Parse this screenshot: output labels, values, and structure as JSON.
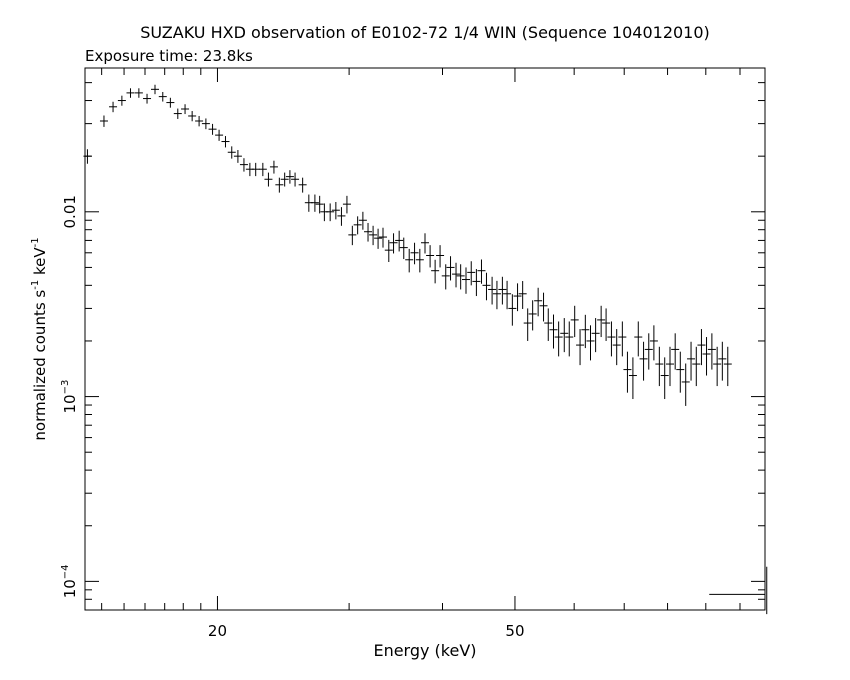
{
  "chart_data": {
    "type": "scatter",
    "title": "SUZAKU HXD observation of E0102-72 1/4 WIN (Sequence 104012010)",
    "subtitle": "Exposure time: 23.8ks",
    "xlabel": "Energy (keV)",
    "ylabel_main": "normalized counts s",
    "ylabel_mid": " keV",
    "ylabel_exp": "-1",
    "x_scale": "log",
    "y_scale": "log",
    "xlim": [
      13.3,
      108
    ],
    "ylim": [
      7e-05,
      0.06
    ],
    "x_ticks": [
      {
        "value": 20,
        "label": "20"
      },
      {
        "value": 50,
        "label": "50"
      }
    ],
    "y_ticks": [
      {
        "value": 0.01,
        "label": "0.01",
        "base": "",
        "exp": ""
      },
      {
        "value": 0.001,
        "label": "",
        "base": "10",
        "exp": "−3"
      },
      {
        "value": 0.0001,
        "label": "",
        "base": "10",
        "exp": "−4"
      }
    ],
    "grid": false,
    "legend": "none",
    "color": "#000000",
    "points": [
      {
        "x": 13.4,
        "y": 0.02,
        "xerr": 0.14,
        "ylo": 0.0018,
        "yhi": 0.0018
      },
      {
        "x": 14.1,
        "y": 0.031,
        "xerr": 0.14,
        "ylo": 0.0022,
        "yhi": 0.0022
      },
      {
        "x": 14.5,
        "y": 0.037,
        "xerr": 0.14,
        "ylo": 0.0024,
        "yhi": 0.0024
      },
      {
        "x": 14.9,
        "y": 0.04,
        "xerr": 0.14,
        "ylo": 0.0025,
        "yhi": 0.0025
      },
      {
        "x": 15.3,
        "y": 0.044,
        "xerr": 0.14,
        "ylo": 0.0026,
        "yhi": 0.0026
      },
      {
        "x": 15.7,
        "y": 0.044,
        "xerr": 0.14,
        "ylo": 0.0026,
        "yhi": 0.0026
      },
      {
        "x": 16.1,
        "y": 0.041,
        "xerr": 0.14,
        "ylo": 0.0025,
        "yhi": 0.0025
      },
      {
        "x": 16.5,
        "y": 0.046,
        "xerr": 0.14,
        "ylo": 0.0027,
        "yhi": 0.0027
      },
      {
        "x": 16.9,
        "y": 0.042,
        "xerr": 0.14,
        "ylo": 0.0025,
        "yhi": 0.0025
      },
      {
        "x": 17.3,
        "y": 0.039,
        "xerr": 0.14,
        "ylo": 0.0024,
        "yhi": 0.0024
      },
      {
        "x": 17.7,
        "y": 0.034,
        "xerr": 0.14,
        "ylo": 0.0022,
        "yhi": 0.0022
      },
      {
        "x": 18.1,
        "y": 0.036,
        "xerr": 0.14,
        "ylo": 0.0022,
        "yhi": 0.0022
      },
      {
        "x": 18.5,
        "y": 0.033,
        "xerr": 0.14,
        "ylo": 0.0021,
        "yhi": 0.0021
      },
      {
        "x": 18.9,
        "y": 0.031,
        "xerr": 0.14,
        "ylo": 0.002,
        "yhi": 0.002
      },
      {
        "x": 19.3,
        "y": 0.03,
        "xerr": 0.14,
        "ylo": 0.002,
        "yhi": 0.002
      },
      {
        "x": 19.7,
        "y": 0.028,
        "xerr": 0.14,
        "ylo": 0.0019,
        "yhi": 0.0019
      },
      {
        "x": 20.1,
        "y": 0.026,
        "xerr": 0.14,
        "ylo": 0.0018,
        "yhi": 0.0018
      },
      {
        "x": 20.5,
        "y": 0.024,
        "xerr": 0.14,
        "ylo": 0.0017,
        "yhi": 0.0017
      },
      {
        "x": 20.9,
        "y": 0.021,
        "xerr": 0.14,
        "ylo": 0.0016,
        "yhi": 0.0016
      },
      {
        "x": 21.3,
        "y": 0.02,
        "xerr": 0.14,
        "ylo": 0.0016,
        "yhi": 0.0016
      },
      {
        "x": 21.7,
        "y": 0.018,
        "xerr": 0.14,
        "ylo": 0.0015,
        "yhi": 0.0015
      },
      {
        "x": 22.1,
        "y": 0.017,
        "xerr": 0.14,
        "ylo": 0.0014,
        "yhi": 0.0014
      },
      {
        "x": 22.5,
        "y": 0.017,
        "xerr": 0.14,
        "ylo": 0.0014,
        "yhi": 0.0014
      },
      {
        "x": 23.0,
        "y": 0.017,
        "xerr": 0.14,
        "ylo": 0.0014,
        "yhi": 0.0014
      },
      {
        "x": 23.4,
        "y": 0.015,
        "xerr": 0.14,
        "ylo": 0.0013,
        "yhi": 0.0013
      },
      {
        "x": 23.8,
        "y": 0.0175,
        "xerr": 0.14,
        "ylo": 0.0014,
        "yhi": 0.0014
      },
      {
        "x": 24.2,
        "y": 0.014,
        "xerr": 0.14,
        "ylo": 0.0013,
        "yhi": 0.0013
      },
      {
        "x": 24.6,
        "y": 0.015,
        "xerr": 0.14,
        "ylo": 0.0013,
        "yhi": 0.0013
      },
      {
        "x": 25.0,
        "y": 0.0155,
        "xerr": 0.14,
        "ylo": 0.0013,
        "yhi": 0.0013
      },
      {
        "x": 25.4,
        "y": 0.015,
        "xerr": 0.14,
        "ylo": 0.0013,
        "yhi": 0.0013
      },
      {
        "x": 26.0,
        "y": 0.014,
        "xerr": 0.14,
        "ylo": 0.0013,
        "yhi": 0.0013
      },
      {
        "x": 26.5,
        "y": 0.0112,
        "xerr": 0.14,
        "ylo": 0.0012,
        "yhi": 0.0012
      },
      {
        "x": 27.0,
        "y": 0.0112,
        "xerr": 0.14,
        "ylo": 0.0012,
        "yhi": 0.0012
      },
      {
        "x": 27.4,
        "y": 0.011,
        "xerr": 0.14,
        "ylo": 0.0012,
        "yhi": 0.0012
      },
      {
        "x": 27.8,
        "y": 0.01,
        "xerr": 0.14,
        "ylo": 0.0011,
        "yhi": 0.0011
      },
      {
        "x": 28.3,
        "y": 0.01,
        "xerr": 0.14,
        "ylo": 0.0011,
        "yhi": 0.0011
      },
      {
        "x": 28.8,
        "y": 0.0102,
        "xerr": 0.14,
        "ylo": 0.0011,
        "yhi": 0.0011
      },
      {
        "x": 29.3,
        "y": 0.0095,
        "xerr": 0.14,
        "ylo": 0.0011,
        "yhi": 0.0011
      },
      {
        "x": 29.8,
        "y": 0.011,
        "xerr": 0.14,
        "ylo": 0.0012,
        "yhi": 0.0012
      },
      {
        "x": 30.3,
        "y": 0.0075,
        "xerr": 0.14,
        "ylo": 0.0009,
        "yhi": 0.0009
      },
      {
        "x": 30.8,
        "y": 0.0085,
        "xerr": 0.14,
        "ylo": 0.00095,
        "yhi": 0.00095
      },
      {
        "x": 31.3,
        "y": 0.009,
        "xerr": 0.14,
        "ylo": 0.001,
        "yhi": 0.001
      },
      {
        "x": 31.8,
        "y": 0.0078,
        "xerr": 0.14,
        "ylo": 0.0009,
        "yhi": 0.0009
      },
      {
        "x": 32.3,
        "y": 0.0075,
        "xerr": 0.14,
        "ylo": 0.0009,
        "yhi": 0.0009
      },
      {
        "x": 32.8,
        "y": 0.0072,
        "xerr": 0.14,
        "ylo": 0.0009,
        "yhi": 0.0009
      },
      {
        "x": 33.3,
        "y": 0.0073,
        "xerr": 0.14,
        "ylo": 0.0009,
        "yhi": 0.0009
      },
      {
        "x": 33.9,
        "y": 0.0062,
        "xerr": 0.14,
        "ylo": 0.00085,
        "yhi": 0.00085
      },
      {
        "x": 34.4,
        "y": 0.0068,
        "xerr": 0.14,
        "ylo": 0.00085,
        "yhi": 0.00085
      },
      {
        "x": 35.0,
        "y": 0.007,
        "xerr": 0.14,
        "ylo": 0.0009,
        "yhi": 0.0009
      },
      {
        "x": 35.5,
        "y": 0.0064,
        "xerr": 0.14,
        "ylo": 0.00085,
        "yhi": 0.00085
      },
      {
        "x": 36.1,
        "y": 0.0055,
        "xerr": 0.14,
        "ylo": 0.0008,
        "yhi": 0.0008
      },
      {
        "x": 36.7,
        "y": 0.006,
        "xerr": 0.14,
        "ylo": 0.0008,
        "yhi": 0.0008
      },
      {
        "x": 37.3,
        "y": 0.0055,
        "xerr": 0.14,
        "ylo": 0.0008,
        "yhi": 0.0008
      },
      {
        "x": 37.9,
        "y": 0.0068,
        "xerr": 0.14,
        "ylo": 0.00085,
        "yhi": 0.00085
      },
      {
        "x": 38.5,
        "y": 0.0058,
        "xerr": 0.14,
        "ylo": 0.0008,
        "yhi": 0.0008
      },
      {
        "x": 39.1,
        "y": 0.0048,
        "xerr": 0.14,
        "ylo": 0.0007,
        "yhi": 0.0007
      },
      {
        "x": 39.7,
        "y": 0.0058,
        "xerr": 0.14,
        "ylo": 0.0008,
        "yhi": 0.0008
      },
      {
        "x": 40.4,
        "y": 0.0045,
        "xerr": 0.14,
        "ylo": 0.0007,
        "yhi": 0.0007
      },
      {
        "x": 41.0,
        "y": 0.005,
        "xerr": 0.14,
        "ylo": 0.00075,
        "yhi": 0.00075
      },
      {
        "x": 41.7,
        "y": 0.0046,
        "xerr": 0.14,
        "ylo": 0.0007,
        "yhi": 0.0007
      },
      {
        "x": 42.3,
        "y": 0.0045,
        "xerr": 0.14,
        "ylo": 0.0007,
        "yhi": 0.0007
      },
      {
        "x": 43.0,
        "y": 0.0043,
        "xerr": 0.14,
        "ylo": 0.0007,
        "yhi": 0.0007
      },
      {
        "x": 43.7,
        "y": 0.0047,
        "xerr": 0.14,
        "ylo": 0.0007,
        "yhi": 0.0007
      },
      {
        "x": 44.4,
        "y": 0.0042,
        "xerr": 0.14,
        "ylo": 0.0007,
        "yhi": 0.0007
      },
      {
        "x": 45.1,
        "y": 0.0048,
        "xerr": 0.14,
        "ylo": 0.00072,
        "yhi": 0.00072
      },
      {
        "x": 45.8,
        "y": 0.004,
        "xerr": 0.14,
        "ylo": 0.00068,
        "yhi": 0.00068
      },
      {
        "x": 46.6,
        "y": 0.0038,
        "xerr": 0.14,
        "ylo": 0.00065,
        "yhi": 0.00065
      },
      {
        "x": 47.3,
        "y": 0.0036,
        "xerr": 0.14,
        "ylo": 0.00063,
        "yhi": 0.00063
      },
      {
        "x": 48.1,
        "y": 0.0038,
        "xerr": 0.14,
        "ylo": 0.00065,
        "yhi": 0.00065
      },
      {
        "x": 48.8,
        "y": 0.0036,
        "xerr": 0.14,
        "ylo": 0.00063,
        "yhi": 0.00063
      },
      {
        "x": 49.6,
        "y": 0.003,
        "xerr": 0.14,
        "ylo": 0.00058,
        "yhi": 0.00058
      },
      {
        "x": 50.4,
        "y": 0.0035,
        "xerr": 0.14,
        "ylo": 0.0006,
        "yhi": 0.0006
      },
      {
        "x": 51.2,
        "y": 0.0036,
        "xerr": 0.14,
        "ylo": 0.00062,
        "yhi": 0.00062
      },
      {
        "x": 52.0,
        "y": 0.0025,
        "xerr": 0.14,
        "ylo": 0.0005,
        "yhi": 0.0005
      },
      {
        "x": 52.8,
        "y": 0.0028,
        "xerr": 0.14,
        "ylo": 0.00052,
        "yhi": 0.00052
      },
      {
        "x": 53.7,
        "y": 0.0033,
        "xerr": 0.14,
        "ylo": 0.00058,
        "yhi": 0.00058
      },
      {
        "x": 54.6,
        "y": 0.0031,
        "xerr": 0.14,
        "ylo": 0.00055,
        "yhi": 0.00055
      },
      {
        "x": 55.4,
        "y": 0.0025,
        "xerr": 0.14,
        "ylo": 0.0005,
        "yhi": 0.0005
      },
      {
        "x": 56.3,
        "y": 0.0023,
        "xerr": 0.14,
        "ylo": 0.00048,
        "yhi": 0.00048
      },
      {
        "x": 57.2,
        "y": 0.0021,
        "xerr": 0.14,
        "ylo": 0.00045,
        "yhi": 0.00045
      },
      {
        "x": 58.2,
        "y": 0.0022,
        "xerr": 0.14,
        "ylo": 0.00046,
        "yhi": 0.00046
      },
      {
        "x": 59.1,
        "y": 0.0021,
        "xerr": 0.14,
        "ylo": 0.00045,
        "yhi": 0.00045
      },
      {
        "x": 60.1,
        "y": 0.0026,
        "xerr": 0.14,
        "ylo": 0.0005,
        "yhi": 0.0005
      },
      {
        "x": 61.1,
        "y": 0.0019,
        "xerr": 0.14,
        "ylo": 0.00042,
        "yhi": 0.00042
      },
      {
        "x": 62.1,
        "y": 0.0023,
        "xerr": 0.14,
        "ylo": 0.00047,
        "yhi": 0.00047
      },
      {
        "x": 63.1,
        "y": 0.002,
        "xerr": 0.14,
        "ylo": 0.00043,
        "yhi": 0.00043
      },
      {
        "x": 64.1,
        "y": 0.0022,
        "xerr": 0.14,
        "ylo": 0.00046,
        "yhi": 0.00046
      },
      {
        "x": 65.2,
        "y": 0.0026,
        "xerr": 0.14,
        "ylo": 0.0005,
        "yhi": 0.0005
      },
      {
        "x": 66.2,
        "y": 0.0025,
        "xerr": 0.14,
        "ylo": 0.0005,
        "yhi": 0.0005
      },
      {
        "x": 67.3,
        "y": 0.0021,
        "xerr": 0.14,
        "ylo": 0.00045,
        "yhi": 0.00045
      },
      {
        "x": 68.4,
        "y": 0.0019,
        "xerr": 0.14,
        "ylo": 0.00042,
        "yhi": 0.00042
      },
      {
        "x": 69.6,
        "y": 0.0021,
        "xerr": 0.14,
        "ylo": 0.00045,
        "yhi": 0.00045
      },
      {
        "x": 70.7,
        "y": 0.0014,
        "xerr": 0.14,
        "ylo": 0.00035,
        "yhi": 0.00035
      },
      {
        "x": 71.9,
        "y": 0.0013,
        "xerr": 0.14,
        "ylo": 0.00033,
        "yhi": 0.00033
      },
      {
        "x": 73.1,
        "y": 0.0021,
        "xerr": 0.14,
        "ylo": 0.00045,
        "yhi": 0.00045
      },
      {
        "x": 74.3,
        "y": 0.0016,
        "xerr": 0.14,
        "ylo": 0.00038,
        "yhi": 0.00038
      },
      {
        "x": 75.5,
        "y": 0.0018,
        "xerr": 0.14,
        "ylo": 0.0004,
        "yhi": 0.0004
      },
      {
        "x": 76.7,
        "y": 0.002,
        "xerr": 0.14,
        "ylo": 0.00043,
        "yhi": 0.00043
      },
      {
        "x": 78.0,
        "y": 0.0015,
        "xerr": 0.14,
        "ylo": 0.00036,
        "yhi": 0.00036
      },
      {
        "x": 79.3,
        "y": 0.0013,
        "xerr": 0.14,
        "ylo": 0.00033,
        "yhi": 0.00033
      },
      {
        "x": 80.6,
        "y": 0.0015,
        "xerr": 0.14,
        "ylo": 0.00036,
        "yhi": 0.00036
      },
      {
        "x": 81.9,
        "y": 0.0018,
        "xerr": 0.14,
        "ylo": 0.0004,
        "yhi": 0.0004
      },
      {
        "x": 83.2,
        "y": 0.0014,
        "xerr": 0.14,
        "ylo": 0.00035,
        "yhi": 0.00035
      },
      {
        "x": 84.6,
        "y": 0.0012,
        "xerr": 0.14,
        "ylo": 0.00031,
        "yhi": 0.00031
      },
      {
        "x": 86.0,
        "y": 0.0016,
        "xerr": 0.14,
        "ylo": 0.00038,
        "yhi": 0.00038
      },
      {
        "x": 87.4,
        "y": 0.0015,
        "xerr": 0.14,
        "ylo": 0.00036,
        "yhi": 0.00036
      },
      {
        "x": 88.8,
        "y": 0.0019,
        "xerr": 0.14,
        "ylo": 0.00042,
        "yhi": 0.00042
      },
      {
        "x": 90.2,
        "y": 0.0017,
        "xerr": 0.14,
        "ylo": 0.0004,
        "yhi": 0.0004
      },
      {
        "x": 91.7,
        "y": 0.0018,
        "xerr": 0.14,
        "ylo": 0.0004,
        "yhi": 0.0004
      },
      {
        "x": 93.2,
        "y": 0.0015,
        "xerr": 0.14,
        "ylo": 0.00036,
        "yhi": 0.00036
      },
      {
        "x": 94.7,
        "y": 0.0016,
        "xerr": 0.14,
        "ylo": 0.00038,
        "yhi": 0.00038
      },
      {
        "x": 96.3,
        "y": 0.0015,
        "xerr": 0.14,
        "ylo": 0.00036,
        "yhi": 0.00036
      }
    ],
    "resolution_marker": {
      "x": 104,
      "y": 8.5e-05,
      "xerr": 0.16,
      "ylo": 1.85e-05,
      "yhi": 3.5e-05
    }
  }
}
